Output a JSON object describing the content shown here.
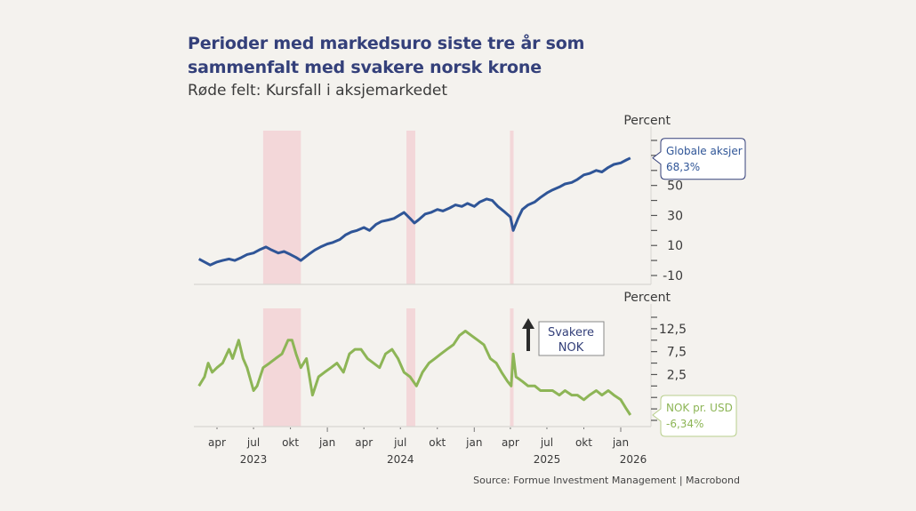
{
  "header": {
    "title_line1": "Perioder med markedsuro siste tre år som",
    "title_line2": "sammenfalt med svakere norsk krone",
    "subtitle": "Røde felt: Kursfall i aksjemarkedet"
  },
  "source": "Source: Formue Investment Management | Macrobond",
  "colors": {
    "background": "#f4f2ee",
    "equities_line": "#2f5597",
    "nok_line": "#8db556",
    "shading": "#f3d7d9",
    "title": "#34407a",
    "arrow": "#2b2b2b"
  },
  "chart_data": [
    {
      "type": "line",
      "title": "Globale aksjer",
      "ylabel": "Percent",
      "ylim": [
        -15,
        85
      ],
      "yticks": [
        -10,
        0,
        10,
        20,
        30,
        40,
        50,
        60,
        70,
        80
      ],
      "yticklabels": [
        "-10",
        "10",
        "30",
        "50"
      ],
      "yticklabel_values": [
        -10,
        10,
        30,
        50
      ],
      "x_start": "2023-02-15",
      "x_end": "2026-01-25",
      "series": [
        {
          "name": "Globale aksjer",
          "end_label": "Globale aksjer",
          "end_value_label": "68,3%",
          "x": [
            "2023-02-15",
            "2023-03-01",
            "2023-03-15",
            "2023-04-01",
            "2023-04-15",
            "2023-05-01",
            "2023-05-15",
            "2023-06-01",
            "2023-06-15",
            "2023-07-01",
            "2023-07-15",
            "2023-08-01",
            "2023-08-15",
            "2023-09-01",
            "2023-09-15",
            "2023-10-01",
            "2023-10-15",
            "2023-10-27",
            "2023-11-15",
            "2023-12-01",
            "2023-12-15",
            "2024-01-01",
            "2024-01-15",
            "2024-02-01",
            "2024-02-15",
            "2024-03-01",
            "2024-03-15",
            "2024-04-01",
            "2024-04-15",
            "2024-05-01",
            "2024-05-15",
            "2024-06-01",
            "2024-06-15",
            "2024-07-10",
            "2024-07-25",
            "2024-08-05",
            "2024-08-15",
            "2024-09-01",
            "2024-09-15",
            "2024-10-01",
            "2024-10-15",
            "2024-11-01",
            "2024-11-15",
            "2024-12-01",
            "2024-12-15",
            "2025-01-01",
            "2025-01-15",
            "2025-02-01",
            "2025-02-15",
            "2025-03-01",
            "2025-03-15",
            "2025-04-01",
            "2025-04-08",
            "2025-04-20",
            "2025-05-01",
            "2025-05-15",
            "2025-06-01",
            "2025-06-15",
            "2025-07-01",
            "2025-07-15",
            "2025-08-01",
            "2025-08-15",
            "2025-09-01",
            "2025-09-15",
            "2025-10-01",
            "2025-10-15",
            "2025-11-01",
            "2025-11-15",
            "2025-12-01",
            "2025-12-15",
            "2026-01-01",
            "2026-01-15",
            "2026-01-25"
          ],
          "values": [
            1,
            -1,
            -3,
            -1,
            0,
            1,
            0,
            2,
            4,
            5,
            7,
            9,
            7,
            5,
            6,
            4,
            2,
            0,
            4,
            7,
            9,
            11,
            12,
            14,
            17,
            19,
            20,
            22,
            20,
            24,
            26,
            27,
            28,
            32,
            28,
            25,
            27,
            31,
            32,
            34,
            33,
            35,
            37,
            36,
            38,
            36,
            39,
            41,
            40,
            36,
            33,
            29,
            20,
            28,
            34,
            37,
            39,
            42,
            45,
            47,
            49,
            51,
            52,
            54,
            57,
            58,
            60,
            59,
            62,
            64,
            65,
            67,
            68.3
          ]
        }
      ],
      "shaded_periods": [
        {
          "start": "2023-07-25",
          "end": "2023-10-27"
        },
        {
          "start": "2024-07-16",
          "end": "2024-08-07"
        },
        {
          "start": "2025-03-31",
          "end": "2025-04-09"
        }
      ]
    },
    {
      "type": "line",
      "title": "NOK pr. USD",
      "ylabel": "Percent",
      "ylim": [
        -8.75,
        16.25
      ],
      "yticks": [
        -7.5,
        -5,
        -2.5,
        0,
        2.5,
        5,
        7.5,
        10,
        12.5,
        15
      ],
      "yticklabels": [
        "12,5",
        "7,5",
        "2,5"
      ],
      "yticklabel_values": [
        12.5,
        7.5,
        2.5
      ],
      "x_start": "2023-02-15",
      "x_end": "2026-01-25",
      "series": [
        {
          "name": "NOK pr. USD",
          "end_label": "NOK pr. USD",
          "end_value_label": "-6,34%",
          "x": [
            "2023-02-15",
            "2023-03-01",
            "2023-03-10",
            "2023-03-20",
            "2023-04-01",
            "2023-04-15",
            "2023-05-01",
            "2023-05-10",
            "2023-05-25",
            "2023-06-05",
            "2023-06-15",
            "2023-07-01",
            "2023-07-10",
            "2023-07-25",
            "2023-08-10",
            "2023-08-25",
            "2023-09-10",
            "2023-09-25",
            "2023-10-05",
            "2023-10-15",
            "2023-10-27",
            "2023-11-10",
            "2023-11-25",
            "2023-12-10",
            "2023-12-25",
            "2024-01-10",
            "2024-01-25",
            "2024-02-10",
            "2024-02-25",
            "2024-03-10",
            "2024-03-25",
            "2024-04-10",
            "2024-04-25",
            "2024-05-10",
            "2024-05-25",
            "2024-06-10",
            "2024-06-25",
            "2024-07-10",
            "2024-07-25",
            "2024-08-10",
            "2024-08-25",
            "2024-09-10",
            "2024-09-25",
            "2024-10-10",
            "2024-10-25",
            "2024-11-10",
            "2024-11-25",
            "2024-12-10",
            "2024-12-25",
            "2025-01-10",
            "2025-01-25",
            "2025-02-10",
            "2025-02-25",
            "2025-03-10",
            "2025-03-25",
            "2025-04-03",
            "2025-04-08",
            "2025-04-15",
            "2025-05-01",
            "2025-05-15",
            "2025-06-01",
            "2025-06-15",
            "2025-07-01",
            "2025-07-15",
            "2025-08-01",
            "2025-08-15",
            "2025-09-01",
            "2025-09-15",
            "2025-10-01",
            "2025-10-15",
            "2025-11-01",
            "2025-11-15",
            "2025-12-01",
            "2025-12-15",
            "2026-01-01",
            "2026-01-15",
            "2026-01-25"
          ],
          "values": [
            0,
            2,
            5,
            3,
            4,
            5,
            8,
            6,
            10,
            6,
            4,
            -1,
            0,
            4,
            5,
            6,
            7,
            10,
            10,
            7,
            4,
            6,
            -2,
            2,
            3,
            4,
            5,
            3,
            7,
            8,
            8,
            6,
            5,
            4,
            7,
            8,
            6,
            3,
            2,
            0,
            3,
            5,
            6,
            7,
            8,
            9,
            11,
            12,
            11,
            10,
            9,
            6,
            5,
            3,
            1,
            0,
            7,
            2,
            1,
            0,
            0,
            -1,
            -1,
            -1,
            -2,
            -1,
            -2,
            -2,
            -3,
            -2,
            -1,
            -2,
            -1,
            -2,
            -3,
            -5,
            -6.34
          ]
        }
      ],
      "annotation": {
        "text_line1": "Svakere",
        "text_line2": "NOK",
        "arrow": "up"
      },
      "shaded_periods": [
        {
          "start": "2023-07-25",
          "end": "2023-10-27"
        },
        {
          "start": "2024-07-16",
          "end": "2024-08-07"
        },
        {
          "start": "2025-03-31",
          "end": "2025-04-09"
        }
      ]
    }
  ],
  "x_axis": {
    "ticks": [
      {
        "date": "2023-04-01",
        "label": "apr"
      },
      {
        "date": "2023-07-01",
        "label": "jul"
      },
      {
        "date": "2023-10-01",
        "label": "okt"
      },
      {
        "date": "2024-01-01",
        "label": "jan"
      },
      {
        "date": "2024-04-01",
        "label": "apr"
      },
      {
        "date": "2024-07-01",
        "label": "jul"
      },
      {
        "date": "2024-10-01",
        "label": "okt"
      },
      {
        "date": "2025-01-01",
        "label": "jan"
      },
      {
        "date": "2025-04-01",
        "label": "apr"
      },
      {
        "date": "2025-07-01",
        "label": "jul"
      },
      {
        "date": "2025-10-01",
        "label": "okt"
      },
      {
        "date": "2026-01-01",
        "label": "jan"
      }
    ],
    "years": [
      {
        "date": "2023-07-01",
        "label": "2023"
      },
      {
        "date": "2024-07-01",
        "label": "2024"
      },
      {
        "date": "2025-07-01",
        "label": "2025"
      },
      {
        "date": "2026-01-01",
        "label": "2026"
      }
    ]
  }
}
